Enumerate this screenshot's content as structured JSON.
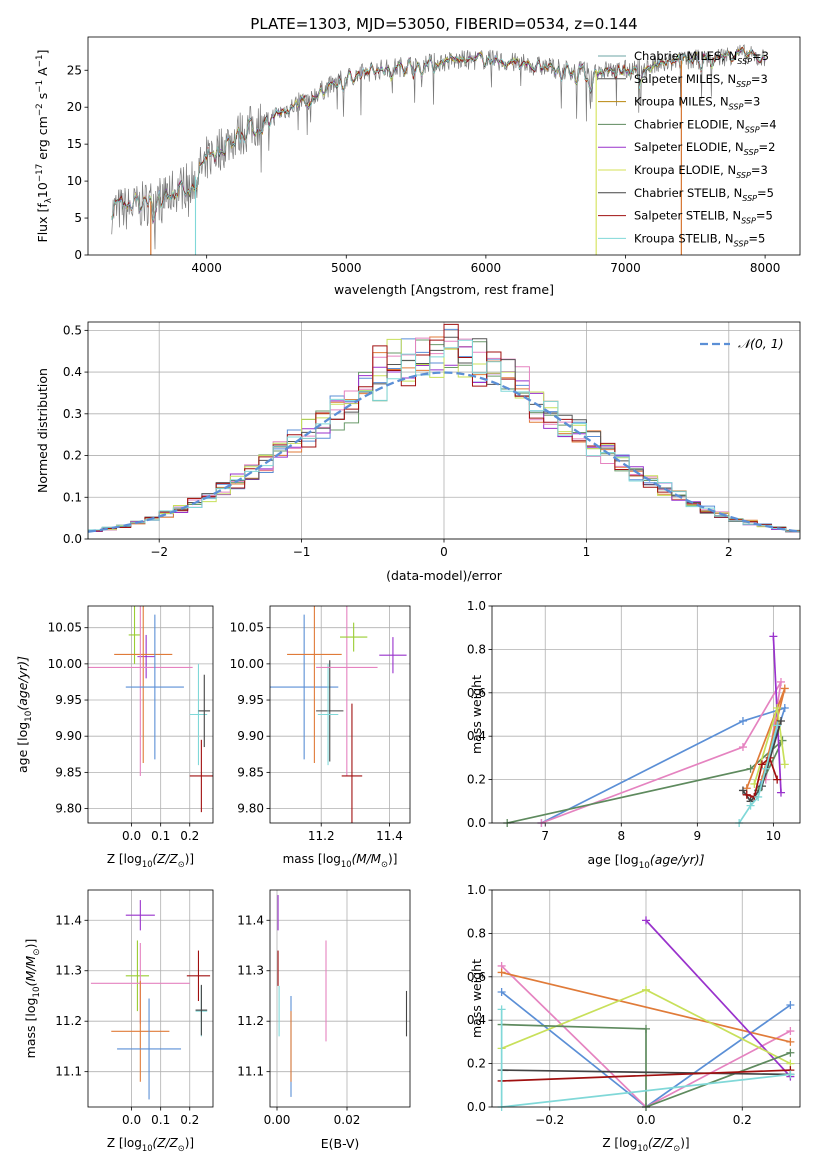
{
  "chart_data": [
    {
      "id": "spectrum",
      "type": "line",
      "title": "PLATE=1303, MJD=53050, FIBERID=0534, z=0.144",
      "xlabel": "wavelength [Angstrom, rest frame]",
      "ylabel_parts": [
        "Flux [f",
        "λ",
        "10",
        "−17",
        " erg cm",
        "−2",
        " s",
        "−1",
        " A",
        "−1",
        "]"
      ],
      "xlim": [
        3150,
        8250
      ],
      "ylim": [
        0,
        29.5
      ],
      "xticks": [
        4000,
        5000,
        6000,
        7000,
        8000
      ],
      "yticks": [
        0,
        5,
        10,
        15,
        20,
        25
      ],
      "grid": false,
      "legend_position": "top-right",
      "series": [
        {
          "name": "Chabrier MILES, N",
          "sub": "SSP",
          "suffix": "=3",
          "color": "#6ca4a4"
        },
        {
          "name": "Salpeter MILES, N",
          "sub": "SSP",
          "suffix": "=3",
          "color": "#555555"
        },
        {
          "name": "Kroupa MILES, N",
          "sub": "SSP",
          "suffix": "=3",
          "color": "#b8860b"
        },
        {
          "name": "Chabrier ELODIE, N",
          "sub": "SSP",
          "suffix": "=4",
          "color": "#5e8a5e"
        },
        {
          "name": "Salpeter ELODIE, N",
          "sub": "SSP",
          "suffix": "=2",
          "color": "#9932cc"
        },
        {
          "name": "Kroupa ELODIE, N",
          "sub": "SSP",
          "suffix": "=3",
          "color": "#d4e157"
        },
        {
          "name": "Chabrier STELIB, N",
          "sub": "SSP",
          "suffix": "=5",
          "color": "#444444"
        },
        {
          "name": "Salpeter STELIB, N",
          "sub": "SSP",
          "suffix": "=5",
          "color": "#a01010"
        },
        {
          "name": "Kroupa STELIB, N",
          "sub": "SSP",
          "suffix": "=5",
          "color": "#80d8d8"
        }
      ],
      "trend": {
        "x": [
          3320,
          3500,
          3700,
          3900,
          4000,
          4200,
          4400,
          4600,
          4800,
          5000,
          5200,
          5400,
          5600,
          5800,
          6000,
          6200,
          6400,
          6600,
          6800,
          7000,
          7200,
          7400,
          7600,
          7800,
          8000
        ],
        "y": [
          6,
          6.5,
          8,
          10,
          13,
          16,
          18,
          20,
          22,
          24,
          25,
          25.5,
          26,
          26.3,
          26.5,
          26,
          25.5,
          25,
          25,
          25,
          25.5,
          26.3,
          26.5,
          27.3,
          26.5
        ]
      },
      "dropouts": [
        {
          "x": 3600,
          "color": "#d2691e"
        },
        {
          "x": 3920,
          "color": "#80d8d8"
        },
        {
          "x": 6790,
          "color": "#d4e157"
        },
        {
          "x": 7400,
          "color": "#d2691e"
        }
      ]
    },
    {
      "id": "residuals",
      "type": "line",
      "xlabel": "(data-model)/error",
      "ylabel": "Normed distribution",
      "xlim": [
        -2.5,
        2.5
      ],
      "ylim": [
        0,
        0.52
      ],
      "xticks": [
        -2,
        -1,
        0,
        1,
        2
      ],
      "yticks": [
        0.0,
        0.1,
        0.2,
        0.3,
        0.4,
        0.5
      ],
      "grid": true,
      "legend_position": "top-right",
      "legend": "𝒩(0, 1)",
      "gaussian": {
        "mean": 0,
        "sigma": 1,
        "color": "#5b8fd6"
      },
      "histogram_bin_width": 0.1,
      "histogram_colors": [
        "#5b8fd6",
        "#e07b39",
        "#6a9a6a",
        "#9932cc",
        "#e583c0",
        "#c8e05a",
        "#555555",
        "#a01010",
        "#80d8d8"
      ]
    },
    {
      "id": "age_vs_Z",
      "type": "scatter",
      "xlabel": "Z [log",
      "xlabel_sub": "10",
      "xlabel_expr": "(Z/Z",
      "xlabel_tail": ")]",
      "ylabel_parts": [
        "age  [log",
        "10",
        "(age/yr)]"
      ],
      "xlim": [
        -0.15,
        0.28
      ],
      "ylim": [
        9.78,
        10.08
      ],
      "xticks": [
        0.0,
        0.1,
        0.2
      ],
      "xtick_labels": [
        "0.0",
        "0.1",
        "0.2"
      ],
      "yticks": [
        9.8,
        9.85,
        9.9,
        9.95,
        10.0,
        10.05
      ],
      "ytick_labels": [
        "9.80",
        "9.85",
        "9.90",
        "9.95",
        "10.00",
        "10.05"
      ],
      "grid": true,
      "points": [
        {
          "x": 0.01,
          "y": 10.04,
          "xerr": 0.02,
          "yerr": 0.04,
          "color": "#9acd32"
        },
        {
          "x": 0.05,
          "y": 10.01,
          "xerr": 0.03,
          "yerr": 0.03,
          "color": "#9932cc"
        },
        {
          "x": 0.04,
          "y": 10.013,
          "xerr": 0.1,
          "yerr": 0.15,
          "color": "#e07b39"
        },
        {
          "x": 0.03,
          "y": 9.995,
          "xerr": 0.18,
          "yerr": 0.15,
          "color": "#e583c0"
        },
        {
          "x": 0.08,
          "y": 9.968,
          "xerr": 0.1,
          "yerr": 0.1,
          "color": "#5b8fd6"
        },
        {
          "x": 0.23,
          "y": 9.93,
          "xerr": 0.03,
          "yerr": 0.07,
          "color": "#80d8d8"
        },
        {
          "x": 0.25,
          "y": 9.935,
          "xerr": 0.02,
          "yerr": 0.05,
          "color": "#444444"
        },
        {
          "x": 0.24,
          "y": 9.845,
          "xerr": 0.04,
          "yerr": 0.05,
          "color": "#a01010"
        }
      ]
    },
    {
      "id": "age_vs_mass",
      "type": "scatter",
      "xlabel": "mass [log",
      "xlabel_sub": "10",
      "xlabel_expr": "(M/M",
      "xlabel_tail": ")]",
      "xlim": [
        11.05,
        11.46
      ],
      "ylim": [
        9.78,
        10.08
      ],
      "xticks": [
        11.2,
        11.4
      ],
      "xtick_labels": [
        "11.2",
        "11.4"
      ],
      "yticks": [
        9.8,
        9.85,
        9.9,
        9.95,
        10.0,
        10.05
      ],
      "ytick_labels": [
        "9.80",
        "9.85",
        "9.90",
        "9.95",
        "10.00",
        "10.05"
      ],
      "grid": true,
      "points": [
        {
          "x": 11.15,
          "y": 9.968,
          "xerr": 0.1,
          "yerr": 0.1,
          "color": "#5b8fd6"
        },
        {
          "x": 11.18,
          "y": 10.013,
          "xerr": 0.08,
          "yerr": 0.15,
          "color": "#e07b39"
        },
        {
          "x": 11.225,
          "y": 9.935,
          "xerr": 0.04,
          "yerr": 0.07,
          "color": "#444444"
        },
        {
          "x": 11.22,
          "y": 9.93,
          "xerr": 0.03,
          "yerr": 0.07,
          "color": "#80d8d8"
        },
        {
          "x": 11.275,
          "y": 9.995,
          "xerr": 0.09,
          "yerr": 0.15,
          "color": "#e583c0"
        },
        {
          "x": 11.29,
          "y": 9.845,
          "xerr": 0.03,
          "yerr": 0.1,
          "color": "#a01010"
        },
        {
          "x": 11.295,
          "y": 10.037,
          "xerr": 0.04,
          "yerr": 0.02,
          "color": "#9acd32"
        },
        {
          "x": 11.41,
          "y": 10.012,
          "xerr": 0.04,
          "yerr": 0.025,
          "color": "#9932cc"
        }
      ]
    },
    {
      "id": "mass_weight_vs_age",
      "type": "line",
      "xlabel_parts": [
        "age  [log",
        "10",
        "(age/yr)]"
      ],
      "ylabel": "mass weight",
      "xlim": [
        6.3,
        10.35
      ],
      "ylim": [
        0,
        1
      ],
      "xticks": [
        7,
        8,
        9,
        10
      ],
      "yticks": [
        0.0,
        0.2,
        0.4,
        0.6,
        0.8,
        1.0
      ],
      "grid": true,
      "series": [
        {
          "color": "#5b8fd6",
          "x": [
            6.95,
            9.6,
            10.15,
            9.8
          ],
          "y": [
            0.0,
            0.47,
            0.53,
            0.15
          ]
        },
        {
          "color": "#e583c0",
          "x": [
            6.95,
            9.6,
            10.1,
            9.9
          ],
          "y": [
            0.0,
            0.35,
            0.65,
            0.2
          ]
        },
        {
          "color": "#5e8a5e",
          "x": [
            6.5,
            9.7,
            10.12,
            9.8
          ],
          "y": [
            0.0,
            0.25,
            0.38,
            0.15
          ]
        },
        {
          "color": "#9932cc",
          "x": [
            10.0,
            10.1
          ],
          "y": [
            0.86,
            0.14
          ]
        },
        {
          "color": "#e07b39",
          "x": [
            9.65,
            10.15,
            9.85
          ],
          "y": [
            0.16,
            0.62,
            0.2
          ]
        },
        {
          "color": "#c8e05a",
          "x": [
            9.75,
            10.05,
            10.15
          ],
          "y": [
            0.18,
            0.53,
            0.27
          ]
        },
        {
          "color": "#444444",
          "x": [
            9.6,
            9.7,
            9.75,
            9.85,
            10.1
          ],
          "y": [
            0.15,
            0.1,
            0.12,
            0.17,
            0.47
          ]
        },
        {
          "color": "#a01010",
          "x": [
            9.65,
            9.75,
            9.85,
            9.95,
            10.05
          ],
          "y": [
            0.13,
            0.12,
            0.27,
            0.3,
            0.2
          ]
        },
        {
          "color": "#80d8d8",
          "x": [
            9.55,
            9.7,
            9.8,
            9.9,
            10.05
          ],
          "y": [
            0.0,
            0.08,
            0.12,
            0.25,
            0.45
          ]
        }
      ]
    },
    {
      "id": "mass_vs_Z",
      "type": "scatter",
      "xlabel": "Z [log",
      "xlabel_sub": "10",
      "xlabel_expr": "(Z/Z",
      "xlabel_tail": ")]",
      "ylabel_parts": [
        "mass [log",
        "10",
        "(M/M",
        "⊙",
        ")]"
      ],
      "xlim": [
        -0.15,
        0.28
      ],
      "ylim": [
        11.03,
        11.46
      ],
      "xticks": [
        0.0,
        0.1,
        0.2
      ],
      "xtick_labels": [
        "0.0",
        "0.1",
        "0.2"
      ],
      "yticks": [
        11.1,
        11.2,
        11.3,
        11.4
      ],
      "ytick_labels": [
        "11.1",
        "11.2",
        "11.3",
        "11.4"
      ],
      "grid": true,
      "points": [
        {
          "x": 0.03,
          "y": 11.41,
          "xerr": 0.05,
          "yerr": 0.03,
          "color": "#9932cc"
        },
        {
          "x": 0.02,
          "y": 11.29,
          "xerr": 0.04,
          "yerr": 0.07,
          "color": "#9acd32"
        },
        {
          "x": 0.03,
          "y": 11.275,
          "xerr": 0.17,
          "yerr": 0.08,
          "color": "#e583c0"
        },
        {
          "x": 0.03,
          "y": 11.18,
          "xerr": 0.1,
          "yerr": 0.1,
          "color": "#e07b39"
        },
        {
          "x": 0.06,
          "y": 11.145,
          "xerr": 0.11,
          "yerr": 0.1,
          "color": "#5b8fd6"
        },
        {
          "x": 0.24,
          "y": 11.22,
          "xerr": 0.02,
          "yerr": 0.05,
          "color": "#80d8d8"
        },
        {
          "x": 0.24,
          "y": 11.222,
          "xerr": 0.02,
          "yerr": 0.05,
          "color": "#444444"
        },
        {
          "x": 0.23,
          "y": 11.29,
          "xerr": 0.04,
          "yerr": 0.05,
          "color": "#a01010"
        }
      ]
    },
    {
      "id": "mass_vs_EBV",
      "type": "scatter",
      "xlabel": "E(B-V)",
      "xlim": [
        -0.002,
        0.038
      ],
      "ylim": [
        11.03,
        11.46
      ],
      "xticks": [
        0.0,
        0.02
      ],
      "xtick_labels": [
        "0.00",
        "0.02"
      ],
      "yticks": [
        11.1,
        11.2,
        11.3,
        11.4
      ],
      "ytick_labels": [
        "11.1",
        "11.2",
        "11.3",
        "11.4"
      ],
      "grid": true,
      "bars": [
        {
          "x": 0.0003,
          "y1": 11.38,
          "y2": 11.45,
          "color": "#9932cc"
        },
        {
          "x": 0.0003,
          "y1": 11.27,
          "y2": 11.34,
          "color": "#a01010"
        },
        {
          "x": 0.0006,
          "y1": 11.17,
          "y2": 11.27,
          "color": "#80d8d8"
        },
        {
          "x": 0.004,
          "y1": 11.05,
          "y2": 11.25,
          "color": "#5b8fd6"
        },
        {
          "x": 0.004,
          "y1": 11.08,
          "y2": 11.22,
          "color": "#e07b39"
        },
        {
          "x": 0.014,
          "y1": 11.16,
          "y2": 11.36,
          "color": "#e583c0"
        },
        {
          "x": 0.037,
          "y1": 11.17,
          "y2": 11.26,
          "color": "#444444"
        }
      ]
    },
    {
      "id": "mass_weight_vs_Z",
      "type": "line",
      "xlabel": "Z [log",
      "xlabel_sub": "10",
      "xlabel_expr": "(Z/Z",
      "xlabel_tail": ")]",
      "ylabel": "mass weight",
      "xlim": [
        -0.32,
        0.32
      ],
      "ylim": [
        0,
        1
      ],
      "xticks": [
        -0.2,
        0.0,
        0.2
      ],
      "xtick_labels": [
        "−0.2",
        "0.0",
        "0.2"
      ],
      "yticks": [
        0.0,
        0.2,
        0.4,
        0.6,
        0.8,
        1.0
      ],
      "grid": true,
      "series": [
        {
          "color": "#5b8fd6",
          "x": [
            -0.3,
            0.0,
            0.3
          ],
          "y": [
            0.53,
            0.0,
            0.47
          ]
        },
        {
          "color": "#e583c0",
          "x": [
            -0.3,
            0.0,
            0.3
          ],
          "y": [
            0.65,
            0.0,
            0.35
          ]
        },
        {
          "color": "#e07b39",
          "x": [
            -0.3,
            0.3
          ],
          "y": [
            0.62,
            0.3
          ]
        },
        {
          "color": "#9932cc",
          "x": [
            0.0,
            0.3
          ],
          "y": [
            0.86,
            0.14
          ]
        },
        {
          "color": "#c8e05a",
          "x": [
            -0.3,
            0.0,
            0.3
          ],
          "y": [
            0.27,
            0.54,
            0.2
          ]
        },
        {
          "color": "#5e8a5e",
          "x": [
            -0.3,
            0.0,
            0.0,
            0.3
          ],
          "y": [
            0.38,
            0.36,
            0.0,
            0.25
          ]
        },
        {
          "color": "#444444",
          "x": [
            -0.3,
            0.3
          ],
          "y": [
            0.17,
            0.15
          ]
        },
        {
          "color": "#a01010",
          "x": [
            -0.3,
            0.3
          ],
          "y": [
            0.12,
            0.17
          ]
        },
        {
          "color": "#80d8d8",
          "x": [
            -0.3,
            -0.3,
            0.3
          ],
          "y": [
            0.45,
            0.0,
            0.15
          ]
        }
      ]
    }
  ]
}
